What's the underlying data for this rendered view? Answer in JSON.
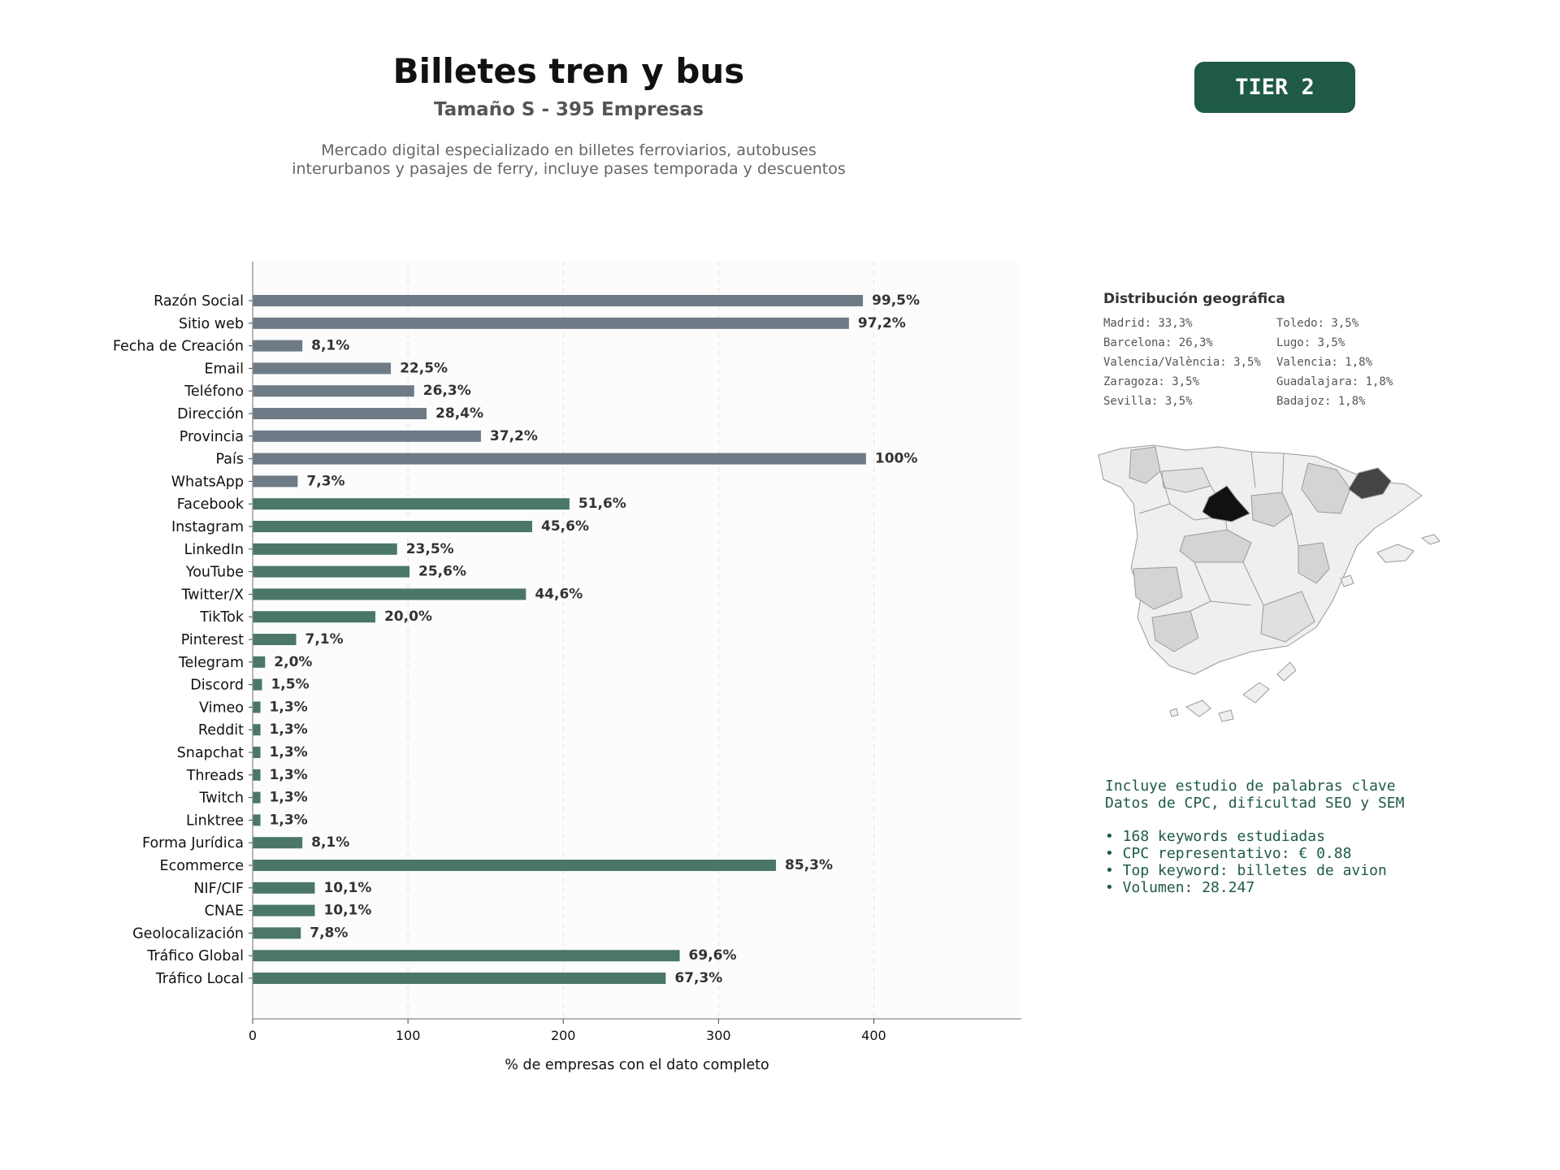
{
  "header": {
    "title": "Billetes tren y bus",
    "subtitle": "Tamaño S - 395 Empresas",
    "description_line1": "Mercado digital especializado en billetes ferroviarios, autobuses",
    "description_line2": "interurbanos y pasajes de ferry, incluye pases temporada y descuentos"
  },
  "badge": {
    "label": "TIER 2"
  },
  "chart_data": {
    "type": "bar",
    "orientation": "horizontal",
    "xlabel": "% de empresas con el dato completo",
    "xlim": [
      0,
      495
    ],
    "xticks": [
      0,
      100,
      200,
      300,
      400
    ],
    "grid": true,
    "colors": {
      "gray": "#6e7b86",
      "green": "#4a7766"
    },
    "categories": [
      "Razón Social",
      "Sitio web",
      "Fecha de Creación",
      "Email",
      "Teléfono",
      "Dirección",
      "Provincia",
      "País",
      "WhatsApp",
      "Facebook",
      "Instagram",
      "LinkedIn",
      "YouTube",
      "Twitter/X",
      "TikTok",
      "Pinterest",
      "Telegram",
      "Discord",
      "Vimeo",
      "Reddit",
      "Snapchat",
      "Threads",
      "Twitch",
      "Linktree",
      "Forma Jurídica",
      "Ecommerce",
      "NIF/CIF",
      "CNAE",
      "Geolocalización",
      "Tráfico Global",
      "Tráfico Local"
    ],
    "values": [
      393,
      384,
      32,
      89,
      104,
      112,
      147,
      395,
      29,
      204,
      180,
      93,
      101,
      176,
      79,
      28,
      8,
      6,
      5,
      5,
      5,
      5,
      5,
      5,
      32,
      337,
      40,
      40,
      31,
      275,
      266
    ],
    "labels": [
      "99,5%",
      "97,2%",
      "8,1%",
      "22,5%",
      "26,3%",
      "28,4%",
      "37,2%",
      "100%",
      "7,3%",
      "51,6%",
      "45,6%",
      "23,5%",
      "25,6%",
      "44,6%",
      "20,0%",
      "7,1%",
      "2,0%",
      "1,5%",
      "1,3%",
      "1,3%",
      "1,3%",
      "1,3%",
      "1,3%",
      "1,3%",
      "8,1%",
      "85,3%",
      "10,1%",
      "10,1%",
      "7,8%",
      "69,6%",
      "67,3%"
    ],
    "bar_colors": [
      "gray",
      "gray",
      "gray",
      "gray",
      "gray",
      "gray",
      "gray",
      "gray",
      "gray",
      "green",
      "green",
      "green",
      "green",
      "green",
      "green",
      "green",
      "green",
      "green",
      "green",
      "green",
      "green",
      "green",
      "green",
      "green",
      "green",
      "green",
      "green",
      "green",
      "green",
      "green",
      "green"
    ]
  },
  "geo": {
    "title": "Distribución geográfica",
    "items": [
      "Madrid: 33,3%",
      "Toledo: 3,5%",
      "Barcelona: 26,3%",
      "Lugo: 3,5%",
      "Valencia/València: 3,5%",
      "Valencia: 1,8%",
      "Zaragoza: 3,5%",
      "Guadalajara: 1,8%",
      "Sevilla: 3,5%",
      "Badajoz: 1,8%"
    ]
  },
  "map": {
    "colors": {
      "madrid": "#111111",
      "barcelona": "#444444",
      "mid": "#d4d4d4",
      "light": "#efefef",
      "border": "#9a9a9a"
    }
  },
  "seo": {
    "line1": "Incluye estudio de palabras clave",
    "line2": "Datos de CPC, dificultad SEO y SEM",
    "bullets": [
      "• 168 keywords estudiadas",
      "• CPC representativo: € 0.88",
      "• Top keyword: billetes de avion",
      "• Volumen: 28.247"
    ]
  }
}
